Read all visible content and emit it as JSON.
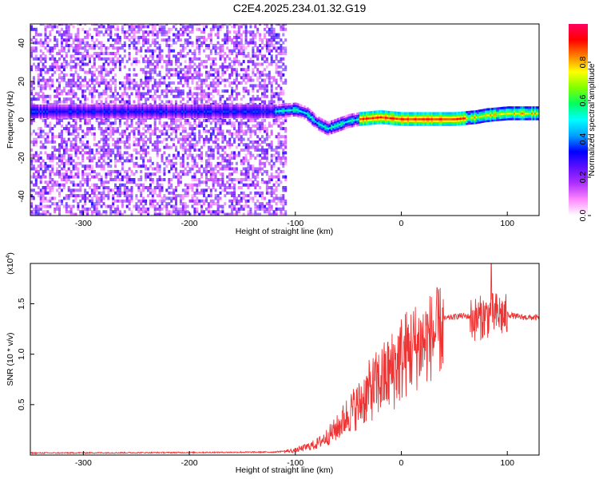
{
  "title": "C2E4.2025.234.01.32.G19",
  "chart_data": [
    {
      "type": "heatmap",
      "xlabel": "Height of straight line (km)",
      "ylabel": "Frequency (Hz)",
      "xlim": [
        -350,
        130
      ],
      "ylim": [
        -50,
        50
      ],
      "xticks": [
        -300,
        -200,
        -100,
        0,
        100
      ],
      "yticks": [
        -40,
        -20,
        0,
        20,
        40
      ],
      "colorbar": {
        "label": "Normalized spectral amplitude",
        "range": [
          0,
          1
        ],
        "ticks": [
          "0.0",
          "0.2",
          "0.4",
          "0.6",
          "0.8"
        ],
        "colors": [
          "#ffffff",
          "#ff88ff",
          "#b030ff",
          "#6010ff",
          "#0000ff",
          "#00a0ff",
          "#00ffff",
          "#00ff60",
          "#80ff00",
          "#ffff00",
          "#ff8000",
          "#ff0000",
          "#ff0060"
        ]
      },
      "noise_region": {
        "x": [
          -350,
          -110
        ],
        "freq": [
          -50,
          50
        ]
      },
      "ridge": [
        {
          "x": -120,
          "f": 4
        },
        {
          "x": -110,
          "f": 4.5
        },
        {
          "x": -100,
          "f": 5
        },
        {
          "x": -90,
          "f": 3
        },
        {
          "x": -80,
          "f": -2
        },
        {
          "x": -70,
          "f": -5
        },
        {
          "x": -60,
          "f": -3
        },
        {
          "x": -50,
          "f": -1
        },
        {
          "x": -40,
          "f": 0
        },
        {
          "x": -30,
          "f": 0.5
        },
        {
          "x": -20,
          "f": 1
        },
        {
          "x": -10,
          "f": 0.5
        },
        {
          "x": 0,
          "f": 0
        },
        {
          "x": 20,
          "f": 0
        },
        {
          "x": 50,
          "f": 0
        },
        {
          "x": 70,
          "f": 1
        },
        {
          "x": 80,
          "f": 2
        },
        {
          "x": 100,
          "f": 3
        },
        {
          "x": 130,
          "f": 3
        }
      ]
    },
    {
      "type": "line",
      "xlabel": "Height of straight line (km)",
      "ylabel": "SNR (10 * v/v)",
      "exponent_label": "(x10",
      "exponent_sup": "4",
      "exponent_close": ")",
      "xlim": [
        -350,
        130
      ],
      "ylim": [
        0,
        1.9
      ],
      "xticks": [
        -300,
        -200,
        -100,
        0,
        100
      ],
      "yticks": [
        "0.5",
        "1.0",
        "1.5"
      ],
      "color": "#ee3333",
      "envelope": [
        {
          "x": -350,
          "y": 0.02
        },
        {
          "x": -200,
          "y": 0.025
        },
        {
          "x": -120,
          "y": 0.03
        },
        {
          "x": -100,
          "y": 0.05
        },
        {
          "x": -80,
          "y": 0.12
        },
        {
          "x": -70,
          "y": 0.2
        },
        {
          "x": -60,
          "y": 0.3
        },
        {
          "x": -50,
          "y": 0.45
        },
        {
          "x": -40,
          "y": 0.55
        },
        {
          "x": -30,
          "y": 0.7
        },
        {
          "x": -20,
          "y": 0.8
        },
        {
          "x": -10,
          "y": 0.9
        },
        {
          "x": 0,
          "y": 1.05
        },
        {
          "x": 10,
          "y": 1.15
        },
        {
          "x": 20,
          "y": 1.2
        },
        {
          "x": 30,
          "y": 1.28
        },
        {
          "x": 40,
          "y": 1.35
        },
        {
          "x": 55,
          "y": 1.38
        },
        {
          "x": 70,
          "y": 1.37
        },
        {
          "x": 80,
          "y": 1.4
        },
        {
          "x": 90,
          "y": 1.42
        },
        {
          "x": 110,
          "y": 1.37
        },
        {
          "x": 130,
          "y": 1.36
        }
      ],
      "peak": {
        "x": 85,
        "y": 1.9
      }
    }
  ]
}
